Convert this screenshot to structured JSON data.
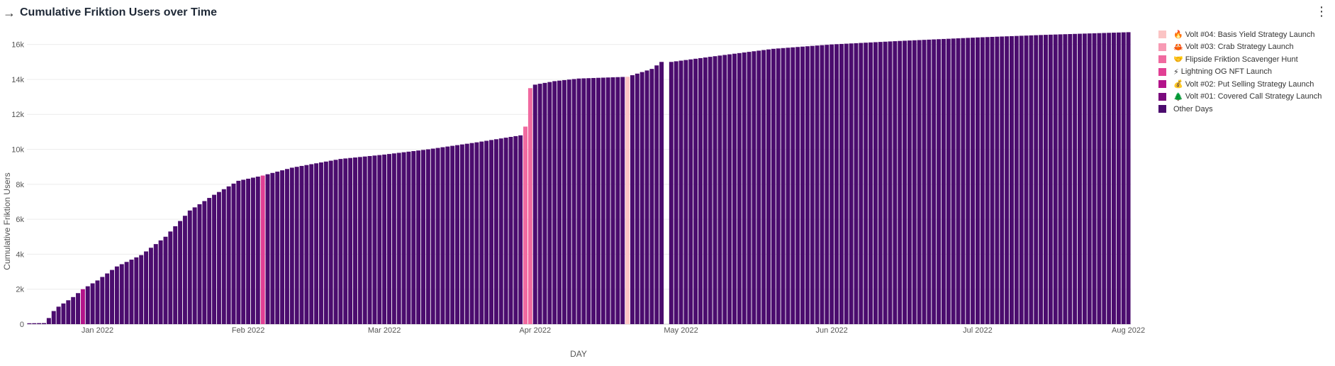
{
  "header": {
    "arrow_icon": "arrow-right-icon",
    "title": "Cumulative Friktion Users over Time",
    "menu_icon": "kebab-menu-icon"
  },
  "chart_data": {
    "type": "bar",
    "title": "Cumulative Friktion Users over Time",
    "xlabel": "DAY",
    "ylabel": "Cumulative Friktion Users",
    "ylim": [
      0,
      17000
    ],
    "yticks": [
      0,
      2000,
      4000,
      6000,
      8000,
      10000,
      12000,
      14000,
      16000
    ],
    "ytick_labels": [
      "0",
      "2k",
      "4k",
      "6k",
      "8k",
      "10k",
      "12k",
      "14k",
      "16k"
    ],
    "xticks": [
      {
        "date": "2022-01-01",
        "label": "Jan 2022"
      },
      {
        "date": "2022-02-01",
        "label": "Feb 2022"
      },
      {
        "date": "2022-03-01",
        "label": "Mar 2022"
      },
      {
        "date": "2022-04-01",
        "label": "Apr 2022"
      },
      {
        "date": "2022-05-01",
        "label": "May 2022"
      },
      {
        "date": "2022-06-01",
        "label": "Jun 2022"
      },
      {
        "date": "2022-07-01",
        "label": "Jul 2022"
      },
      {
        "date": "2022-08-01",
        "label": "Aug 2022"
      }
    ],
    "date_range": [
      "2021-12-18",
      "2022-08-01"
    ],
    "grid": true,
    "legend_position": "right",
    "series": [
      {
        "name": "Volt #04: Basis Yield Strategy Launch",
        "emoji": "🔥",
        "color": "#fbc4c4"
      },
      {
        "name": "Volt #03: Crab Strategy Launch",
        "emoji": "🦀",
        "color": "#f79ab4"
      },
      {
        "name": "Flipside Friktion Scavenger Hunt",
        "emoji": "🤝",
        "color": "#f06aa0"
      },
      {
        "name": "Lightning OG NFT Launch",
        "emoji": "⚡",
        "color": "#e13f94"
      },
      {
        "name": "Volt #02: Put Selling Strategy Launch",
        "emoji": "💰",
        "color": "#b3138a"
      },
      {
        "name": "Volt #01: Covered Call Strategy Launch",
        "emoji": "🌲",
        "color": "#7a0b7d"
      },
      {
        "name": "Other Days",
        "emoji": "",
        "color": "#4b0c6e"
      }
    ],
    "highlights": [
      {
        "date": "2021-12-29",
        "series": 4
      },
      {
        "date": "2022-02-04",
        "series": 3
      },
      {
        "date": "2022-03-30",
        "series": 2
      },
      {
        "date": "2022-03-31",
        "series": 2
      },
      {
        "date": "2022-04-20",
        "series": 0
      }
    ],
    "gaps": [
      "2022-04-28"
    ],
    "keyframes": [
      {
        "date": "2021-12-18",
        "value": 50
      },
      {
        "date": "2021-12-21",
        "value": 60
      },
      {
        "date": "2021-12-22",
        "value": 350
      },
      {
        "date": "2021-12-23",
        "value": 750
      },
      {
        "date": "2021-12-24",
        "value": 1000
      },
      {
        "date": "2021-12-27",
        "value": 1550
      },
      {
        "date": "2021-12-29",
        "value": 2000
      },
      {
        "date": "2022-01-01",
        "value": 2500
      },
      {
        "date": "2022-01-05",
        "value": 3300
      },
      {
        "date": "2022-01-10",
        "value": 3950
      },
      {
        "date": "2022-01-15",
        "value": 5000
      },
      {
        "date": "2022-01-20",
        "value": 6500
      },
      {
        "date": "2022-01-25",
        "value": 7400
      },
      {
        "date": "2022-01-30",
        "value": 8200
      },
      {
        "date": "2022-02-04",
        "value": 8500
      },
      {
        "date": "2022-02-10",
        "value": 8950
      },
      {
        "date": "2022-02-15",
        "value": 9200
      },
      {
        "date": "2022-02-20",
        "value": 9450
      },
      {
        "date": "2022-03-01",
        "value": 9700
      },
      {
        "date": "2022-03-10",
        "value": 10000
      },
      {
        "date": "2022-03-20",
        "value": 10400
      },
      {
        "date": "2022-03-29",
        "value": 10800
      },
      {
        "date": "2022-03-30",
        "value": 11300
      },
      {
        "date": "2022-03-31",
        "value": 13500
      },
      {
        "date": "2022-04-01",
        "value": 13700
      },
      {
        "date": "2022-04-05",
        "value": 13900
      },
      {
        "date": "2022-04-10",
        "value": 14050
      },
      {
        "date": "2022-04-20",
        "value": 14150
      },
      {
        "date": "2022-04-25",
        "value": 14600
      },
      {
        "date": "2022-04-27",
        "value": 15000
      },
      {
        "date": "2022-04-29",
        "value": 15000
      },
      {
        "date": "2022-05-10",
        "value": 15400
      },
      {
        "date": "2022-05-20",
        "value": 15750
      },
      {
        "date": "2022-06-01",
        "value": 16000
      },
      {
        "date": "2022-06-15",
        "value": 16200
      },
      {
        "date": "2022-07-01",
        "value": 16400
      },
      {
        "date": "2022-07-15",
        "value": 16550
      },
      {
        "date": "2022-08-01",
        "value": 16700
      }
    ]
  }
}
